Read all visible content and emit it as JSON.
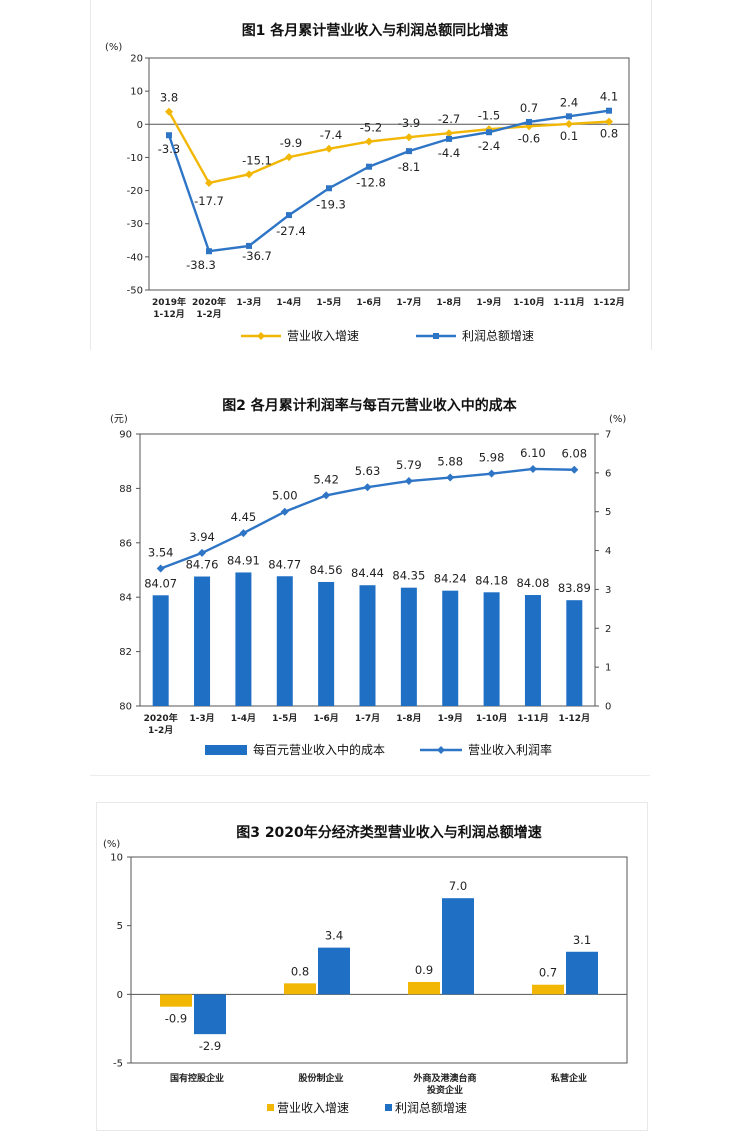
{
  "chart_data": [
    {
      "type": "line",
      "title": "图1  各月累计营业收入与利润总额同比增速",
      "ylabel": "(%)",
      "ylim": [
        -50,
        20
      ],
      "yticks": [
        "20",
        "10",
        "0",
        "-10",
        "-20",
        "-30",
        "-40",
        "-50"
      ],
      "categories": [
        [
          "2019年",
          "1-12月"
        ],
        [
          "2020年",
          "1-2月"
        ],
        [
          "1-3月"
        ],
        [
          "1-4月"
        ],
        [
          "1-5月"
        ],
        [
          "1-6月"
        ],
        [
          "1-7月"
        ],
        [
          "1-8月"
        ],
        [
          "1-9月"
        ],
        [
          "1-10月"
        ],
        [
          "1-11月"
        ],
        [
          "1-12月"
        ]
      ],
      "series": [
        {
          "name": "营业收入增速",
          "color": "#F2B705",
          "values": [
            3.8,
            -17.7,
            -15.1,
            -9.9,
            -7.4,
            -5.2,
            -3.9,
            -2.7,
            -1.5,
            -0.6,
            0.1,
            0.8
          ],
          "labels": [
            "3.8",
            "-17.7",
            "-15.1",
            "-9.9",
            "-7.4",
            "-5.2",
            "-3.9",
            "-2.7",
            "-1.5",
            "-0.6",
            "0.1",
            "0.8"
          ]
        },
        {
          "name": "利润总额增速",
          "color": "#2E75C6",
          "values": [
            -3.3,
            -38.3,
            -36.7,
            -27.4,
            -19.3,
            -12.8,
            -8.1,
            -4.4,
            -2.4,
            0.7,
            2.4,
            4.1
          ],
          "labels": [
            "-3.3",
            "-38.3",
            "-36.7",
            "-27.4",
            "-19.3",
            "-12.8",
            "-8.1",
            "-4.4",
            "-2.4",
            "0.7",
            "2.4",
            "4.1"
          ]
        }
      ]
    },
    {
      "type": "bar",
      "title": "图2  各月累计利润率与每百元营业收入中的成本",
      "ylabel_left": "(元)",
      "ylabel_right": "(%)",
      "ylim_left": [
        80,
        90
      ],
      "ylim_right": [
        0,
        7
      ],
      "yticks_left": [
        "90",
        "88",
        "86",
        "84",
        "82",
        "80"
      ],
      "yticks_right": [
        "7",
        "6",
        "5",
        "4",
        "3",
        "2",
        "1",
        "0"
      ],
      "categories": [
        [
          "2020年",
          "1-2月"
        ],
        [
          "1-3月"
        ],
        [
          "1-4月"
        ],
        [
          "1-5月"
        ],
        [
          "1-6月"
        ],
        [
          "1-7月"
        ],
        [
          "1-8月"
        ],
        [
          "1-9月"
        ],
        [
          "1-10月"
        ],
        [
          "1-11月"
        ],
        [
          "1-12月"
        ]
      ],
      "series": [
        {
          "name": "每百元营业收入中的成本",
          "kind": "bar",
          "axis": "left",
          "color": "#1F6FC5",
          "values": [
            84.07,
            84.76,
            84.91,
            84.77,
            84.56,
            84.44,
            84.35,
            84.24,
            84.18,
            84.08,
            83.89
          ],
          "labels": [
            "84.07",
            "84.76",
            "84.91",
            "84.77",
            "84.56",
            "84.44",
            "84.35",
            "84.24",
            "84.18",
            "84.08",
            "83.89"
          ]
        },
        {
          "name": "营业收入利润率",
          "kind": "line",
          "axis": "right",
          "color": "#2E75C6",
          "values": [
            3.54,
            3.94,
            4.45,
            5.0,
            5.42,
            5.63,
            5.79,
            5.88,
            5.98,
            6.1,
            6.08
          ],
          "labels": [
            "3.54",
            "3.94",
            "4.45",
            "5.00",
            "5.42",
            "5.63",
            "5.79",
            "5.88",
            "5.98",
            "6.10",
            "6.08"
          ]
        }
      ]
    },
    {
      "type": "bar",
      "title": "图3  2020年分经济类型营业收入与利润总额增速",
      "ylabel": "(%)",
      "ylim": [
        -5,
        10
      ],
      "yticks": [
        "10",
        "5",
        "0",
        "-5"
      ],
      "categories": [
        [
          "国有控股企业"
        ],
        [
          "股份制企业"
        ],
        [
          "外商及港澳台商",
          "投资企业"
        ],
        [
          "私营企业"
        ]
      ],
      "series": [
        {
          "name": "营业收入增速",
          "color": "#F2B705",
          "values": [
            -0.9,
            0.8,
            0.9,
            0.7
          ],
          "labels": [
            "-0.9",
            "0.8",
            "0.9",
            "0.7"
          ]
        },
        {
          "name": "利润总额增速",
          "color": "#1F6FC5",
          "values": [
            -2.9,
            3.4,
            7.0,
            3.1
          ],
          "labels": [
            "-2.9",
            "3.4",
            "7.0",
            "3.1"
          ]
        }
      ]
    }
  ]
}
